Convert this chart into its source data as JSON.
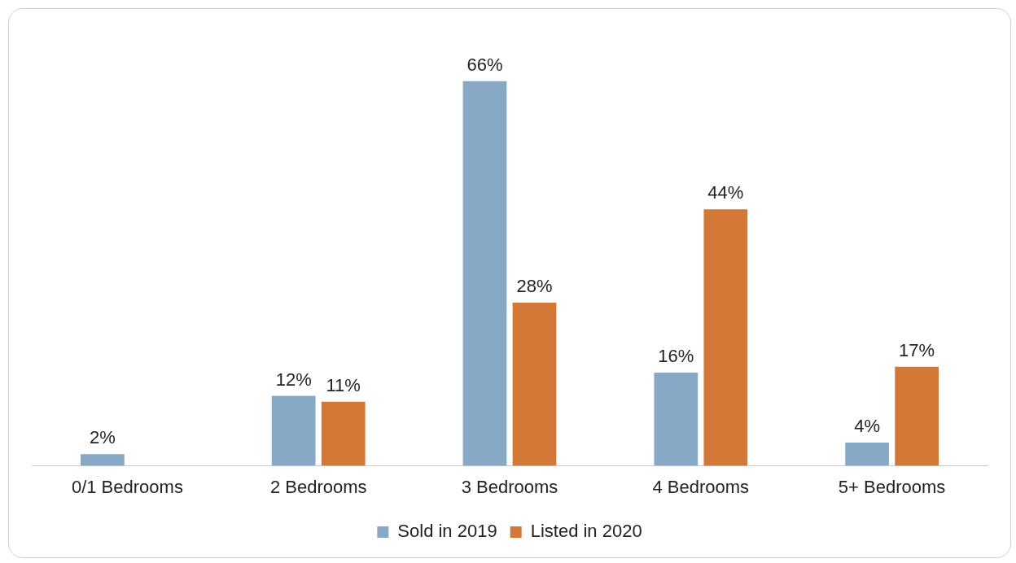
{
  "chart_data": {
    "type": "bar",
    "categories": [
      "0/1 Bedrooms",
      "2 Bedrooms",
      "3 Bedrooms",
      "4 Bedrooms",
      "5+ Bedrooms"
    ],
    "series": [
      {
        "name": "Sold in 2019",
        "color": "#87a9c6",
        "values": [
          2,
          12,
          66,
          16,
          4
        ],
        "value_labels": [
          "2%",
          "12%",
          "66%",
          "16%",
          "4%"
        ]
      },
      {
        "name": "Listed in 2020",
        "color": "#d37836",
        "values": [
          null,
          11,
          28,
          44,
          17
        ],
        "value_labels": [
          null,
          "11%",
          "28%",
          "44%",
          "17%"
        ]
      }
    ],
    "legend": "bottom",
    "tick_labels": "x"
  }
}
